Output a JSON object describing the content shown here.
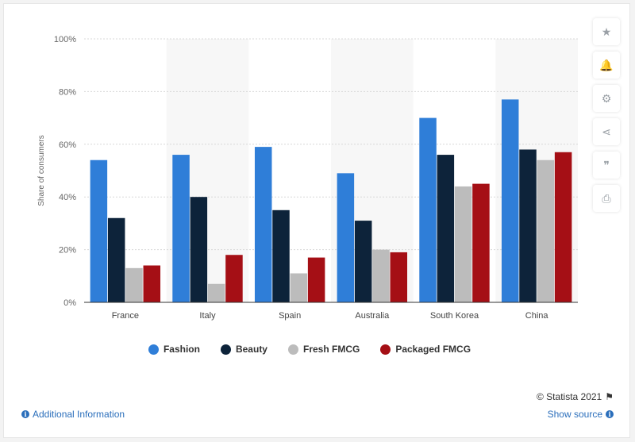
{
  "chart_data": {
    "type": "bar",
    "categories": [
      "France",
      "Italy",
      "Spain",
      "Australia",
      "South Korea",
      "China"
    ],
    "series": [
      {
        "name": "Fashion",
        "color": "#2f7ed8",
        "values": [
          54,
          56,
          59,
          49,
          70,
          77
        ]
      },
      {
        "name": "Beauty",
        "color": "#0d233a",
        "values": [
          32,
          40,
          35,
          31,
          56,
          58
        ]
      },
      {
        "name": "Fresh FMCG",
        "color": "#bcbcbc",
        "values": [
          13,
          7,
          11,
          20,
          44,
          54
        ]
      },
      {
        "name": "Packaged FMCG",
        "color": "#a50f15",
        "values": [
          14,
          18,
          17,
          19,
          45,
          57
        ]
      }
    ],
    "ylabel": "Share of consumers",
    "xlabel": "",
    "ylim": [
      0,
      100
    ],
    "yticks": [
      "0%",
      "20%",
      "40%",
      "60%",
      "80%",
      "100%"
    ],
    "grid": true,
    "legend_position": "bottom-center"
  },
  "footer": {
    "copyright": "© Statista 2021",
    "additional_info": "Additional Information",
    "show_source": "Show source"
  },
  "tools": [
    {
      "name": "star-icon",
      "glyph": "★"
    },
    {
      "name": "bell-icon",
      "glyph": "🔔"
    },
    {
      "name": "gear-icon",
      "glyph": "⚙"
    },
    {
      "name": "share-icon",
      "glyph": "⋖"
    },
    {
      "name": "quote-icon",
      "glyph": "❞"
    },
    {
      "name": "print-icon",
      "glyph": "⎙"
    }
  ]
}
